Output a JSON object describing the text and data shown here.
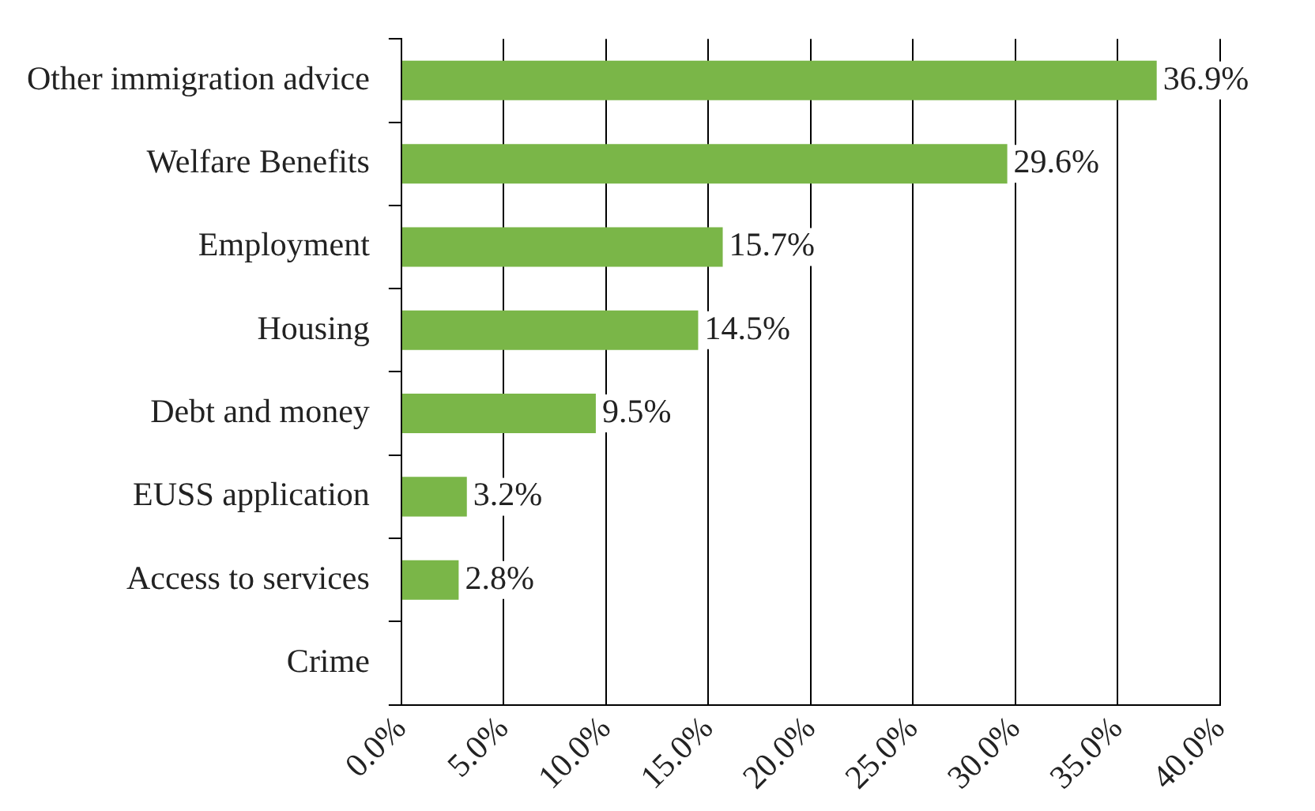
{
  "chart_data": {
    "type": "bar",
    "orientation": "horizontal",
    "categories": [
      "Other immigration advice",
      "Welfare Benefits",
      "Employment",
      "Housing",
      "Debt and money",
      "EUSS application",
      "Access to services",
      "Crime"
    ],
    "values": [
      36.9,
      29.6,
      15.7,
      14.5,
      9.5,
      3.2,
      2.8,
      0
    ],
    "value_labels": [
      "36.9%",
      "29.6%",
      "15.7%",
      "14.5%",
      "9.5%",
      "3.2%",
      "2.8%",
      null
    ],
    "color": "#7ab648",
    "xlim": [
      0,
      40
    ],
    "xticks": [
      {
        "value": 0,
        "label": "0.0%"
      },
      {
        "value": 5,
        "label": "5.0%"
      },
      {
        "value": 10,
        "label": "10.0%"
      },
      {
        "value": 15,
        "label": "15.0%"
      },
      {
        "value": 20,
        "label": "20.0%"
      },
      {
        "value": 25,
        "label": "25.0%"
      },
      {
        "value": 30,
        "label": "30.0%"
      },
      {
        "value": 35,
        "label": "35.0%"
      },
      {
        "value": 40,
        "label": "40.0%"
      }
    ],
    "grid": "x",
    "legend": false
  }
}
